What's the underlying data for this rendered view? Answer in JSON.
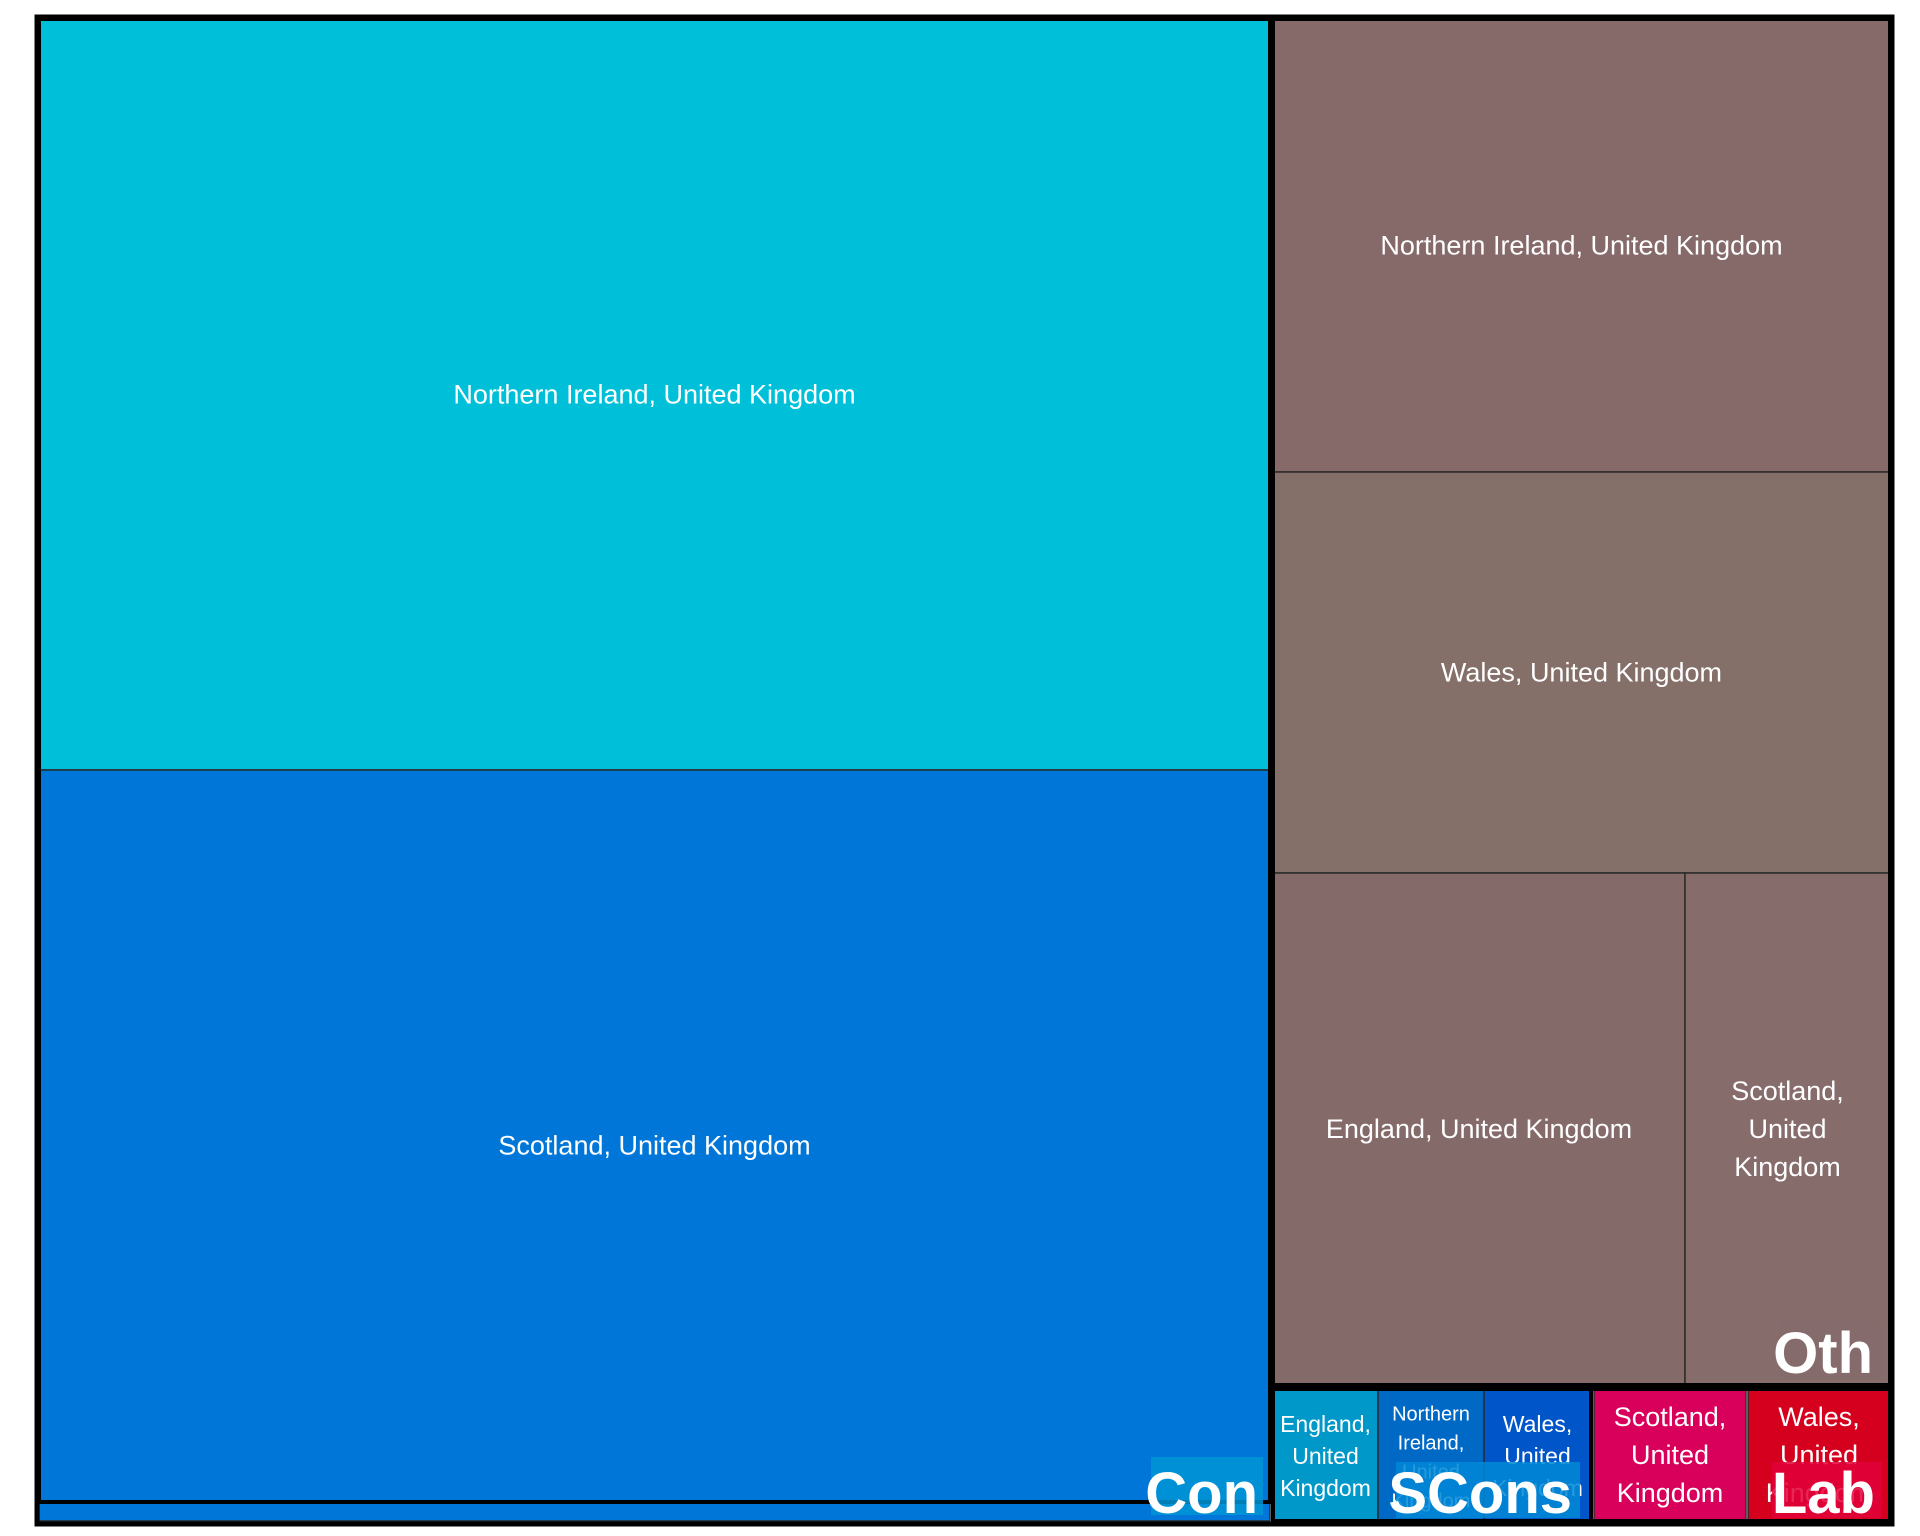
{
  "chart_data": {
    "type": "treemap",
    "groups": [
      {
        "name": "Con",
        "color": "#0094d6",
        "children": [
          {
            "label": "Northern Ireland, United Kingdom",
            "color": "#00bfd8"
          },
          {
            "label": "Scotland, United Kingdom",
            "color": "#0077d8"
          }
        ]
      },
      {
        "name": "Oth",
        "color": "#856b6b",
        "children": [
          {
            "label": "Northern Ireland, United Kingdom",
            "color": "#866969"
          },
          {
            "label": "Wales, United Kingdom",
            "color": "#846f69"
          },
          {
            "label": "England, United Kingdom",
            "color": "#856a6a"
          },
          {
            "label": "Scotland, United Kingdom",
            "color": "#876c6c"
          }
        ]
      },
      {
        "name": "SCons",
        "color": "#0088d6",
        "children": [
          {
            "label": "England, United Kingdom",
            "color": "#0098c8"
          },
          {
            "label": "Northern Ireland, United Kingdom",
            "color": "#0069c6"
          },
          {
            "label": "Wales, United Kingdom",
            "color": "#0056c8"
          }
        ]
      },
      {
        "name": "Lab",
        "color": "#e0003a",
        "children": [
          {
            "label": "Scotland, United Kingdom",
            "color": "#d8005a"
          },
          {
            "label": "Wales, United Kingdom",
            "color": "#d4001e"
          }
        ]
      }
    ]
  }
}
